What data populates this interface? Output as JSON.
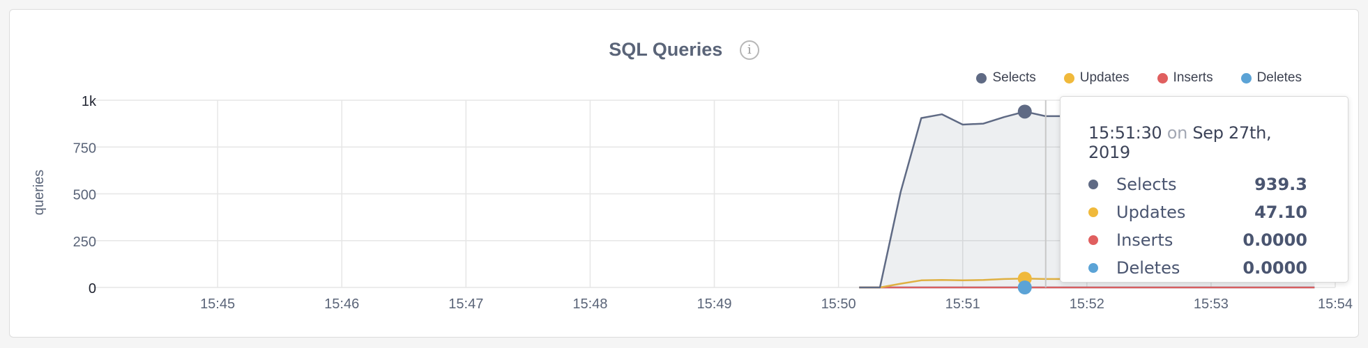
{
  "panel": {
    "title": "SQL Queries",
    "info_icon": "info-icon"
  },
  "chart_data": {
    "type": "area",
    "title": "SQL Queries",
    "xlabel": "",
    "ylabel": "queries",
    "x_ticks": [
      "15:45",
      "15:46",
      "15:47",
      "15:48",
      "15:49",
      "15:50",
      "15:51",
      "15:52",
      "15:53",
      "15:54"
    ],
    "y_ticks": [
      "0",
      "250",
      "500",
      "750",
      "1k"
    ],
    "ylim": [
      0,
      1000
    ],
    "xlim": [
      "15:44",
      "15:54"
    ],
    "legend_position": "top-right",
    "grid": true,
    "x": [
      "15:50:10",
      "15:50:20",
      "15:50:30",
      "15:50:40",
      "15:50:50",
      "15:51:00",
      "15:51:10",
      "15:51:20",
      "15:51:30",
      "15:51:40",
      "15:51:50",
      "15:52:00",
      "15:52:10",
      "15:52:20",
      "15:52:30",
      "15:52:40",
      "15:52:50",
      "15:53:00",
      "15:53:10",
      "15:53:20",
      "15:53:30",
      "15:53:40",
      "15:53:50"
    ],
    "series": [
      {
        "name": "Selects",
        "color": "#5f6a84",
        "values": [
          0,
          0,
          510,
          905,
          925,
          870,
          875,
          910,
          939.3,
          915,
          915,
          920,
          918,
          915,
          916,
          916,
          916,
          916,
          916,
          916,
          916,
          916,
          916
        ]
      },
      {
        "name": "Updates",
        "color": "#f0b93b",
        "values": [
          0,
          0,
          20,
          38,
          40,
          38,
          40,
          45,
          47.1,
          45,
          45,
          45,
          45,
          45,
          45,
          45,
          45,
          45,
          45,
          45,
          45,
          45,
          45
        ]
      },
      {
        "name": "Inserts",
        "color": "#e05f5f",
        "values": [
          0,
          0,
          0,
          0,
          0,
          0,
          0,
          0,
          0,
          0,
          0,
          0,
          0,
          0,
          0,
          0,
          0,
          0,
          0,
          0,
          0,
          0,
          0
        ]
      },
      {
        "name": "Deletes",
        "color": "#5ba3d6",
        "values": [
          0,
          0,
          0,
          0,
          0,
          0,
          0,
          0,
          0,
          0,
          0,
          0,
          0,
          0,
          0,
          0,
          0,
          0,
          0,
          0,
          0,
          0,
          0
        ]
      }
    ],
    "highlight_x": "15:51:30",
    "tooltip": {
      "time": "15:51:30",
      "on": "on",
      "date": "Sep 27th, 2019",
      "rows": [
        {
          "name": "Selects",
          "value": "939.3",
          "color": "#5f6a84"
        },
        {
          "name": "Updates",
          "value": "47.10",
          "color": "#f0b93b"
        },
        {
          "name": "Inserts",
          "value": "0.0000",
          "color": "#e05f5f"
        },
        {
          "name": "Deletes",
          "value": "0.0000",
          "color": "#5ba3d6"
        }
      ]
    }
  }
}
